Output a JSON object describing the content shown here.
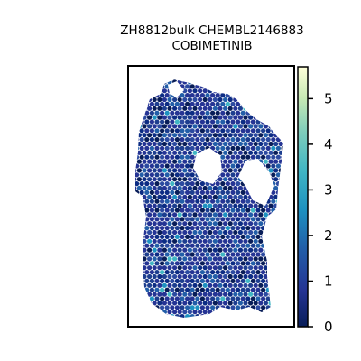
{
  "chart_data": {
    "type": "heatmap",
    "title": "ZH8812bulk CHEMBL2146883",
    "subtitle": "COBIMETINIB",
    "colorbar": {
      "ticks": [
        0,
        1,
        2,
        3,
        4,
        5
      ],
      "range": [
        0,
        5.7
      ],
      "colormap": "YlGnBu_r"
    },
    "colors": {
      "low": "#081d58",
      "mid": "#253494",
      "high": "#ffffd9",
      "axes": "#000000"
    },
    "grid": false
  }
}
